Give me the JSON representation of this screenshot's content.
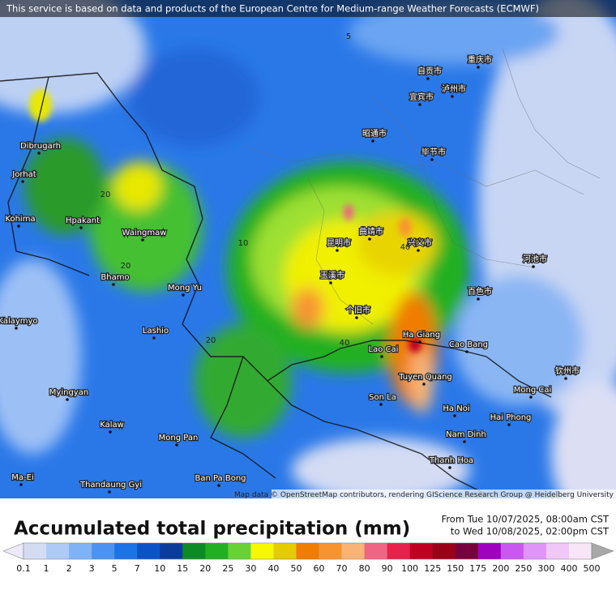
{
  "header": {
    "notice": "This service is based on data and products of the European Centre for Medium-range Weather Forecasts (ECMWF)"
  },
  "map": {
    "places": [
      "Dibrugarh",
      "Jorhat",
      "Kohima",
      "Hpakant",
      "Waingmaw",
      "Bhamo",
      "Mong Yu",
      "Lashio",
      "Kalaymyo",
      "Myingyan",
      "Kalaw",
      "Mong Pan",
      "Ma-Ei",
      "Thandaung Gyi",
      "Ban Pa Bong",
      "Lao Cai",
      "Ha Giang",
      "Cao Bang",
      "Tuyen Quang",
      "Son La",
      "Ha Noi",
      "Hai Phong",
      "Nam Dinh",
      "Thanh Hoa",
      "Mong Cai",
      "昆明市",
      "重庆市",
      "泸州市",
      "毕节市",
      "兴义市",
      "百色市",
      "宜宾市",
      "自贡市",
      "昭通市",
      "曲靖市",
      "玉溪市",
      "个旧市",
      "河池市",
      "钦州市"
    ],
    "contour_labels": [
      "20",
      "20",
      "40",
      "40",
      "10",
      "5",
      "20"
    ],
    "attribution": "Map data © OpenStreetMap contributors, rendering GIScience Research Group @ Heidelberg University"
  },
  "legend": {
    "title": "Accumulated total precipitation (mm)",
    "time_from": "From Tue 10/07/2025, 08:00am CST",
    "time_to": "to Wed 10/08/2025, 02:00pm CST",
    "labels": [
      "0.1",
      "1",
      "2",
      "3",
      "5",
      "7",
      "10",
      "15",
      "20",
      "25",
      "30",
      "40",
      "50",
      "60",
      "70",
      "80",
      "90",
      "100",
      "125",
      "150",
      "175",
      "200",
      "250",
      "300",
      "400",
      "500"
    ],
    "below_color": "#eceaf8",
    "above_color": "#a8a8a8",
    "colors": [
      "#d4dcf4",
      "#aecbf8",
      "#80b2f6",
      "#4c92f0",
      "#1c72e6",
      "#0a52c8",
      "#0a3c9c",
      "#0e8a24",
      "#22b022",
      "#66d236",
      "#f8f800",
      "#e4cc00",
      "#f07c00",
      "#f89430",
      "#f8b476",
      "#f06484",
      "#e8204c",
      "#c00020",
      "#9a0018",
      "#78003c",
      "#a000c0",
      "#c858f0",
      "#e094f8",
      "#f0c8f8",
      "#f8e6f8"
    ]
  }
}
